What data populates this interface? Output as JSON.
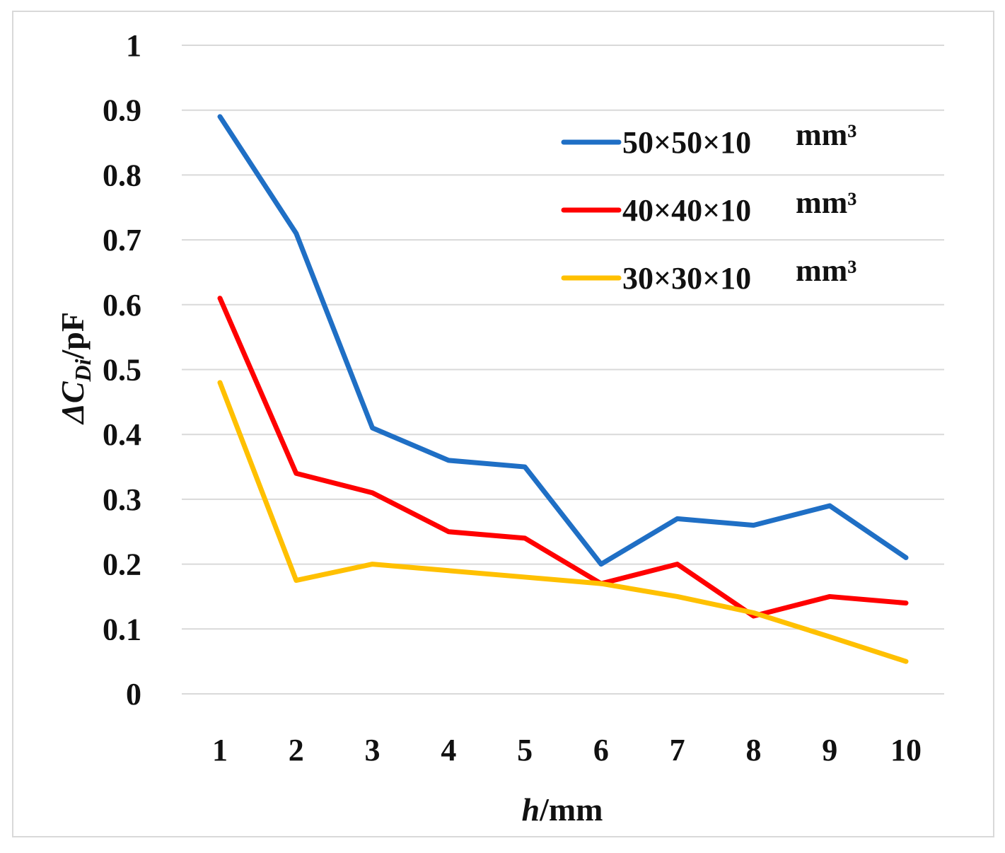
{
  "chart_data": {
    "type": "line",
    "title": "",
    "xlabel_italic": "h",
    "xlabel_rest": "/mm",
    "ylabel_prefix": "ΔC",
    "ylabel_sub": "Di",
    "ylabel_suffix": "/pF",
    "categories": [
      "1",
      "2",
      "3",
      "4",
      "5",
      "6",
      "7",
      "8",
      "9",
      "10"
    ],
    "x": [
      1,
      2,
      3,
      4,
      5,
      6,
      7,
      8,
      9,
      10
    ],
    "ylim": [
      0,
      1
    ],
    "yticks": [
      0,
      0.1,
      0.2,
      0.3,
      0.4,
      0.5,
      0.6,
      0.7,
      0.8,
      0.9,
      1
    ],
    "ytick_labels": [
      "0",
      "0.1",
      "0.2",
      "0.3",
      "0.4",
      "0.5",
      "0.6",
      "0.7",
      "0.8",
      "0.9",
      "1"
    ],
    "grid": true,
    "legend_position": "top-right",
    "series": [
      {
        "name": "50×50×10 mm³",
        "label_main": "50×50×10",
        "label_unit": "mm³",
        "color": "#1f6fc5",
        "values": [
          0.89,
          0.71,
          0.41,
          0.36,
          0.35,
          0.2,
          0.27,
          0.26,
          0.29,
          0.21
        ]
      },
      {
        "name": "40×40×10 mm³",
        "label_main": "40×40×10",
        "label_unit": "mm³",
        "color": "#ff0000",
        "values": [
          0.61,
          0.34,
          0.31,
          0.25,
          0.24,
          0.17,
          0.2,
          0.12,
          0.15,
          0.14
        ]
      },
      {
        "name": "30×30×10 mm³",
        "label_main": "30×30×10",
        "label_unit": "mm³",
        "color": "#ffc000",
        "values": [
          0.48,
          0.175,
          0.2,
          0.19,
          0.18,
          0.17,
          0.15,
          0.125,
          0.088,
          0.05
        ]
      }
    ]
  }
}
